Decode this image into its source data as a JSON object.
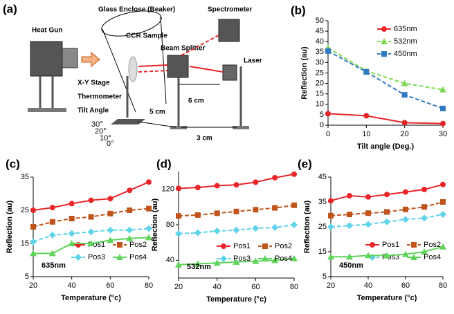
{
  "diagram": {
    "panel_label": "(a)",
    "beaker": "Glass Enclose (Beaker)",
    "spectrometer": "Spectrometer",
    "heat_gun": "Heat Gun",
    "sample": "CCR Sample",
    "splitter": "Beam Splitter",
    "laser": "Laser",
    "stage": "X-Y Stage",
    "thermometer": "Thermometer",
    "tilt": "Tilt Angle",
    "d1": "5 cm",
    "d2": "6 cm",
    "d3": "3 cm",
    "angles": [
      "30°",
      "20°",
      "10°",
      "0°"
    ]
  },
  "chart_data": [
    {
      "type": "line",
      "label": "(b)",
      "xlabel": "Tilt angle (Deg.)",
      "ylabel": "Reflection (au)",
      "x": [
        0,
        10,
        20,
        30
      ],
      "xlim": [
        0,
        30
      ],
      "xticks": [
        0,
        10,
        20,
        30
      ],
      "ylim": [
        0,
        50
      ],
      "yticks": [
        0,
        5,
        10,
        15,
        20,
        25,
        30,
        35,
        40,
        45,
        50
      ],
      "legend": "upper right",
      "series": [
        {
          "name": "635nm",
          "color": "#e8262a",
          "marker": "circle",
          "dashed": false,
          "values": [
            5.5,
            4.5,
            1.2,
            0.8
          ]
        },
        {
          "name": "532nm",
          "color": "#7ed957",
          "marker": "triangle",
          "dashed": true,
          "values": [
            37,
            26,
            20,
            17
          ]
        },
        {
          "name": "450nm",
          "color": "#2f7ac0",
          "marker": "square",
          "dashed": true,
          "values": [
            35.5,
            25.5,
            14.5,
            8
          ]
        }
      ]
    },
    {
      "type": "line",
      "label": "(c)",
      "xlabel": "Temperature (°c)",
      "ylabel": "Reflection (au)",
      "annotation": "635nm",
      "annotation_color": "#e8262a",
      "x": [
        20,
        30,
        40,
        50,
        60,
        70,
        80
      ],
      "xlim": [
        20,
        80
      ],
      "xticks": [
        20,
        40,
        60,
        80
      ],
      "ylim": [
        5,
        35
      ],
      "yticks": [
        5,
        15,
        25,
        35
      ],
      "legend": "lower right",
      "series": [
        {
          "name": "Pos1",
          "color": "#e8262a",
          "marker": "circle",
          "dashed": false,
          "values": [
            25,
            25.8,
            27,
            28,
            28.5,
            31,
            33.5
          ]
        },
        {
          "name": "Pos2",
          "color": "#c0551c",
          "marker": "square",
          "dashed": true,
          "values": [
            20,
            21.5,
            22.5,
            23,
            24,
            25,
            25.5
          ]
        },
        {
          "name": "Pos3",
          "color": "#5fd3e8",
          "marker": "diamond",
          "dashed": true,
          "values": [
            15.5,
            17.5,
            18,
            18.5,
            19,
            19,
            19.5
          ]
        },
        {
          "name": "Pos4",
          "color": "#5fd35a",
          "marker": "triangle",
          "dashed": false,
          "values": [
            12,
            12,
            15,
            15,
            16,
            16.5,
            16.8
          ]
        }
      ]
    },
    {
      "type": "line",
      "label": "(d)",
      "xlabel": "Temperature (°c)",
      "ylabel": "Reflection (au)",
      "annotation": "532nm",
      "annotation_color": "#3cc83c",
      "x": [
        20,
        30,
        40,
        50,
        60,
        70,
        80
      ],
      "xlim": [
        20,
        80
      ],
      "xticks": [
        20,
        40,
        60,
        80
      ],
      "ylim": [
        20,
        140
      ],
      "yticks": [
        40,
        80,
        120
      ],
      "legend": "lower right",
      "series": [
        {
          "name": "Pos1",
          "color": "#e8262a",
          "marker": "circle",
          "dashed": false,
          "values": [
            121,
            122,
            124,
            125,
            128,
            133,
            137
          ]
        },
        {
          "name": "Pos2",
          "color": "#c0551c",
          "marker": "square",
          "dashed": true,
          "values": [
            90,
            91,
            93,
            95,
            97,
            99,
            102
          ]
        },
        {
          "name": "Pos3",
          "color": "#5fd3e8",
          "marker": "diamond",
          "dashed": true,
          "values": [
            70,
            71,
            73,
            74,
            76,
            77,
            80
          ]
        },
        {
          "name": "Pos4",
          "color": "#5fd35a",
          "marker": "triangle",
          "dashed": false,
          "values": [
            35,
            36,
            37,
            38,
            39,
            40,
            42
          ]
        }
      ]
    },
    {
      "type": "line",
      "label": "(e)",
      "xlabel": "Temperature (°c)",
      "ylabel": "Reflection (au)",
      "annotation": "450nm",
      "annotation_color": "#7030a0",
      "x": [
        20,
        30,
        40,
        50,
        60,
        70,
        80
      ],
      "xlim": [
        20,
        80
      ],
      "xticks": [
        20,
        40,
        60,
        80
      ],
      "ylim": [
        5,
        45
      ],
      "yticks": [
        5,
        15,
        25,
        35,
        45
      ],
      "legend": "lower right",
      "series": [
        {
          "name": "Pos1",
          "color": "#e8262a",
          "marker": "circle",
          "dashed": false,
          "values": [
            35.5,
            37.5,
            37,
            38,
            39,
            40,
            42
          ]
        },
        {
          "name": "Pos2",
          "color": "#c0551c",
          "marker": "square",
          "dashed": true,
          "values": [
            29.5,
            30,
            30.5,
            31,
            32,
            33,
            35
          ]
        },
        {
          "name": "Pos3",
          "color": "#5fd3e8",
          "marker": "diamond",
          "dashed": true,
          "values": [
            25,
            25.5,
            26,
            27,
            28,
            28.5,
            30
          ]
        },
        {
          "name": "Pos4",
          "color": "#5fd35a",
          "marker": "triangle",
          "dashed": false,
          "values": [
            13,
            13,
            13.5,
            13.5,
            14,
            15,
            17
          ]
        }
      ]
    }
  ]
}
